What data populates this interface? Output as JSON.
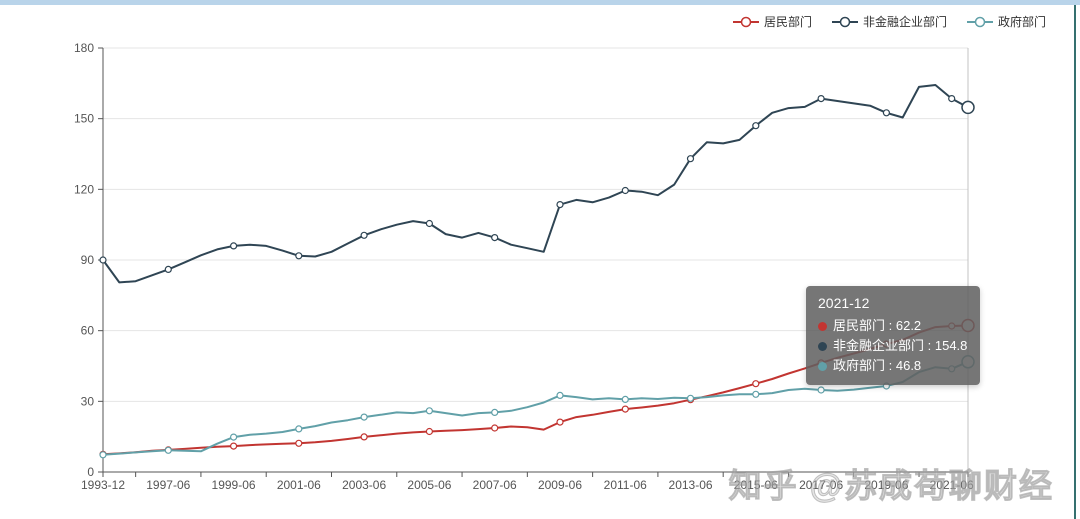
{
  "page": {
    "watermark": "知乎 @苏成苟聊财经"
  },
  "chart_data": {
    "type": "line",
    "title": "",
    "xlabel": "",
    "ylabel": "",
    "ylim": [
      0,
      180
    ],
    "y_tick_step": 30,
    "grid": true,
    "legend_position": "top-right",
    "x": [
      "1993-12",
      "1994-12",
      "1995-12",
      "1996-12",
      "1997-06",
      "1997-12",
      "1998-06",
      "1998-12",
      "1999-06",
      "1999-12",
      "2000-06",
      "2000-12",
      "2001-06",
      "2001-12",
      "2002-06",
      "2002-12",
      "2003-06",
      "2003-12",
      "2004-06",
      "2004-12",
      "2005-06",
      "2005-12",
      "2006-06",
      "2006-12",
      "2007-06",
      "2007-12",
      "2008-06",
      "2008-12",
      "2009-06",
      "2009-12",
      "2010-06",
      "2010-12",
      "2011-06",
      "2011-12",
      "2012-06",
      "2012-12",
      "2013-06",
      "2013-12",
      "2014-06",
      "2014-12",
      "2015-06",
      "2015-12",
      "2016-06",
      "2016-12",
      "2017-06",
      "2017-12",
      "2018-06",
      "2018-12",
      "2019-06",
      "2019-12",
      "2020-06",
      "2020-12",
      "2021-06",
      "2021-12"
    ],
    "x_label_indices": [
      0,
      4,
      8,
      12,
      16,
      20,
      24,
      28,
      32,
      36,
      40,
      44,
      48,
      52
    ],
    "marker_interval": 4,
    "emphasis_index": 53,
    "series": [
      {
        "name": "居民部门",
        "color": "#c23531",
        "values": [
          7.5,
          7.9,
          8.4,
          9.0,
          9.4,
          9.8,
          10.3,
          10.7,
          11.0,
          11.4,
          11.7,
          12.0,
          12.2,
          12.6,
          13.2,
          14.0,
          14.9,
          15.6,
          16.3,
          16.8,
          17.2,
          17.5,
          17.8,
          18.2,
          18.7,
          19.3,
          19.0,
          18.0,
          21.2,
          23.3,
          24.3,
          25.5,
          26.7,
          27.4,
          28.2,
          29.2,
          30.7,
          32.2,
          33.8,
          35.6,
          37.5,
          39.5,
          41.8,
          44.0,
          46.3,
          48.5,
          50.3,
          52.2,
          54.3,
          56.1,
          59.2,
          61.5,
          62.0,
          62.2
        ]
      },
      {
        "name": "非金融企业部门",
        "color": "#2f4554",
        "values": [
          90.0,
          80.5,
          81.0,
          83.5,
          86.0,
          89.0,
          92.0,
          94.5,
          96.0,
          96.5,
          96.0,
          94.0,
          91.8,
          91.5,
          93.5,
          97.0,
          100.5,
          103.0,
          105.0,
          106.5,
          105.5,
          101.0,
          99.5,
          101.5,
          99.5,
          96.5,
          95.0,
          93.5,
          113.5,
          115.5,
          114.5,
          116.5,
          119.5,
          119.0,
          117.5,
          122.0,
          133.0,
          140.0,
          139.5,
          141.0,
          147.0,
          152.5,
          154.5,
          155.0,
          158.5,
          157.5,
          156.5,
          155.5,
          152.5,
          150.5,
          163.5,
          164.3,
          158.5,
          154.8
        ]
      },
      {
        "name": "政府部门",
        "color": "#61a0a8",
        "values": [
          7.3,
          7.8,
          8.3,
          8.8,
          9.2,
          9.0,
          8.8,
          12.0,
          14.8,
          15.8,
          16.3,
          17.0,
          18.3,
          19.5,
          21.0,
          22.0,
          23.3,
          24.3,
          25.3,
          25.0,
          26.0,
          25.0,
          24.0,
          25.0,
          25.3,
          26.0,
          27.5,
          29.5,
          32.5,
          31.8,
          30.8,
          31.3,
          30.8,
          31.3,
          31.0,
          31.5,
          31.3,
          31.8,
          32.5,
          33.0,
          33.0,
          33.5,
          34.8,
          35.3,
          34.8,
          34.5,
          35.0,
          35.8,
          36.5,
          38.2,
          42.4,
          44.5,
          43.8,
          46.8
        ]
      }
    ],
    "tooltip": {
      "title": "2021-12",
      "separator": " : ",
      "items": [
        {
          "name": "居民部门",
          "value": "62.2",
          "color": "#c23531"
        },
        {
          "name": "非金融企业部门",
          "value": "154.8",
          "color": "#2f4554"
        },
        {
          "name": "政府部门",
          "value": "46.8",
          "color": "#61a0a8"
        }
      ]
    }
  }
}
